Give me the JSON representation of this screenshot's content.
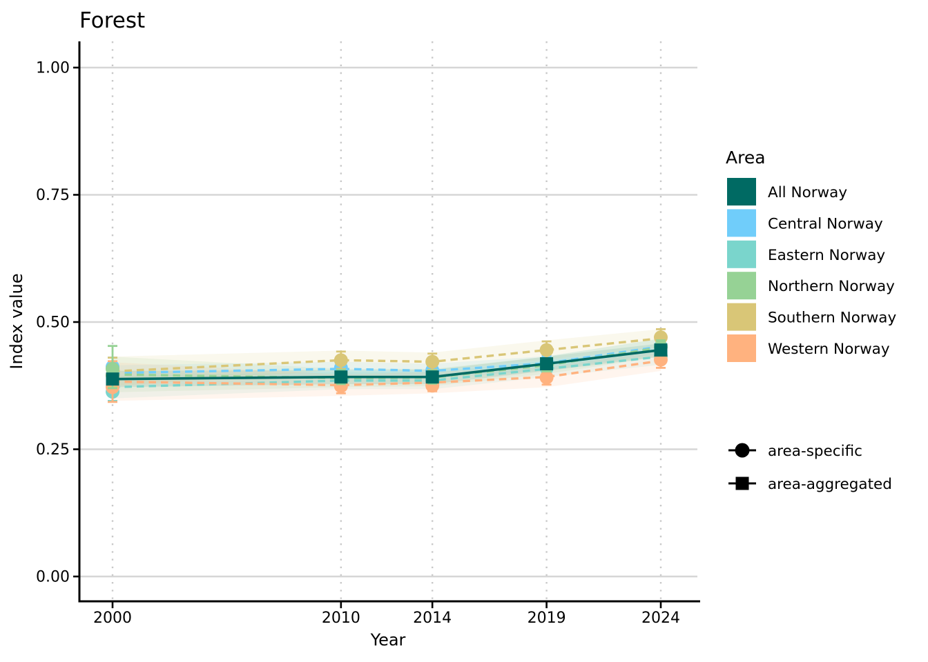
{
  "chart_data": {
    "type": "line",
    "title": "Forest",
    "xlabel": "Year",
    "ylabel": "Index value",
    "x_ticks": [
      {
        "value": 2000,
        "label": "2000"
      },
      {
        "value": 2010,
        "label": "2010"
      },
      {
        "value": 2014,
        "label": "2014"
      },
      {
        "value": 2019,
        "label": "2019"
      },
      {
        "value": 2024,
        "label": "2024"
      }
    ],
    "y_ticks": [
      {
        "value": 0.0,
        "label": "0.00"
      },
      {
        "value": 0.25,
        "label": "0.25"
      },
      {
        "value": 0.5,
        "label": "0.50"
      },
      {
        "value": 0.75,
        "label": "0.75"
      },
      {
        "value": 1.0,
        "label": "1.00"
      }
    ],
    "ylim": [
      0.0,
      1.0
    ],
    "grid": {
      "horizontal": "solid",
      "vertical": "dotted"
    },
    "years": [
      2000,
      2010,
      2014,
      2019,
      2024
    ],
    "legend": {
      "title": "Area",
      "entries": [
        {
          "label": "All Norway",
          "color": "#006a63"
        },
        {
          "label": "Central Norway",
          "color": "#70cdfa"
        },
        {
          "label": "Eastern Norway",
          "color": "#7ad5cc"
        },
        {
          "label": "Northern Norway",
          "color": "#96d295"
        },
        {
          "label": "Southern Norway",
          "color": "#d9c677"
        },
        {
          "label": "Western Norway",
          "color": "#ffb27f"
        }
      ],
      "shapes": [
        {
          "label": "area-specific",
          "marker": "circle"
        },
        {
          "label": "area-aggregated",
          "marker": "square"
        }
      ]
    },
    "area_aggregated": [
      {
        "name": "All Norway",
        "color": "#006a63",
        "line": "solid",
        "values": [
          0.388,
          0.392,
          0.392,
          0.418,
          0.445
        ],
        "band_lo": [
          0.372,
          0.378,
          0.378,
          0.404,
          0.432
        ],
        "band_hi": [
          0.404,
          0.406,
          0.406,
          0.432,
          0.458
        ]
      },
      {
        "name": "Central Norway",
        "color": "#70cdfa",
        "line": "dashed",
        "values": [
          0.4,
          0.408,
          0.404,
          0.419,
          0.452
        ],
        "band_lo": [
          0.385,
          0.394,
          0.39,
          0.405,
          0.437
        ],
        "band_hi": [
          0.415,
          0.422,
          0.418,
          0.433,
          0.467
        ]
      },
      {
        "name": "Eastern Norway",
        "color": "#7ad5cc",
        "line": "dashed",
        "values": [
          0.372,
          0.385,
          0.385,
          0.408,
          0.432
        ],
        "band_lo": [
          0.35,
          0.368,
          0.368,
          0.392,
          0.416
        ],
        "band_hi": [
          0.394,
          0.402,
          0.402,
          0.424,
          0.448
        ]
      },
      {
        "name": "Northern Norway",
        "color": "#96d295",
        "line": "dashed",
        "values": [
          0.397,
          0.39,
          0.391,
          0.415,
          0.45
        ],
        "band_lo": [
          0.362,
          0.372,
          0.374,
          0.398,
          0.432
        ],
        "band_hi": [
          0.432,
          0.408,
          0.408,
          0.432,
          0.468
        ]
      },
      {
        "name": "Southern Norway",
        "color": "#d9c677",
        "line": "dashed",
        "values": [
          0.403,
          0.425,
          0.422,
          0.445,
          0.468
        ],
        "band_lo": [
          0.374,
          0.406,
          0.404,
          0.426,
          0.45
        ],
        "band_hi": [
          0.432,
          0.444,
          0.44,
          0.464,
          0.486
        ]
      },
      {
        "name": "Western Norway",
        "color": "#ffb27f",
        "line": "dashed",
        "values": [
          0.383,
          0.376,
          0.381,
          0.392,
          0.424
        ],
        "band_lo": [
          0.345,
          0.355,
          0.36,
          0.372,
          0.404
        ],
        "band_hi": [
          0.421,
          0.397,
          0.402,
          0.412,
          0.444
        ]
      }
    ],
    "area_specific": [
      {
        "name": "Eastern Norway",
        "color": "#7ad5cc",
        "values": [
          0.363,
          0.386,
          0.385,
          0.409,
          0.433
        ],
        "lo": [
          0.345,
          0.372,
          0.372,
          0.396,
          0.42
        ],
        "hi": [
          0.381,
          0.4,
          0.398,
          0.422,
          0.446
        ]
      },
      {
        "name": "Central Norway",
        "color": "#70cdfa",
        "values": [
          0.412,
          0.41,
          0.405,
          0.42,
          0.452
        ],
        "lo": [
          0.394,
          0.396,
          0.392,
          0.407,
          0.439
        ],
        "hi": [
          0.43,
          0.424,
          0.418,
          0.433,
          0.465
        ]
      },
      {
        "name": "Western Norway",
        "color": "#ffb27f",
        "values": [
          0.372,
          0.374,
          0.375,
          0.391,
          0.426
        ],
        "lo": [
          0.343,
          0.36,
          0.364,
          0.377,
          0.41
        ],
        "hi": [
          0.423,
          0.388,
          0.386,
          0.405,
          0.442
        ]
      },
      {
        "name": "Southern Norway",
        "color": "#d9c677",
        "values": [
          0.395,
          0.425,
          0.422,
          0.445,
          0.47
        ],
        "lo": [
          0.372,
          0.408,
          0.406,
          0.428,
          0.455
        ],
        "hi": [
          0.43,
          0.442,
          0.438,
          0.462,
          0.486
        ]
      },
      {
        "name": "Northern Norway",
        "color": "#96d295",
        "values": [
          0.408,
          0.392,
          0.392,
          0.416,
          0.451
        ],
        "lo": [
          0.37,
          0.378,
          0.379,
          0.403,
          0.438
        ],
        "hi": [
          0.453,
          0.406,
          0.405,
          0.429,
          0.464
        ]
      }
    ],
    "colors": {
      "axis": "#000000",
      "grid_solid": "#d6d6d6",
      "grid_dotted": "#c8c8c8",
      "text": "#000000",
      "background": "#ffffff"
    }
  }
}
